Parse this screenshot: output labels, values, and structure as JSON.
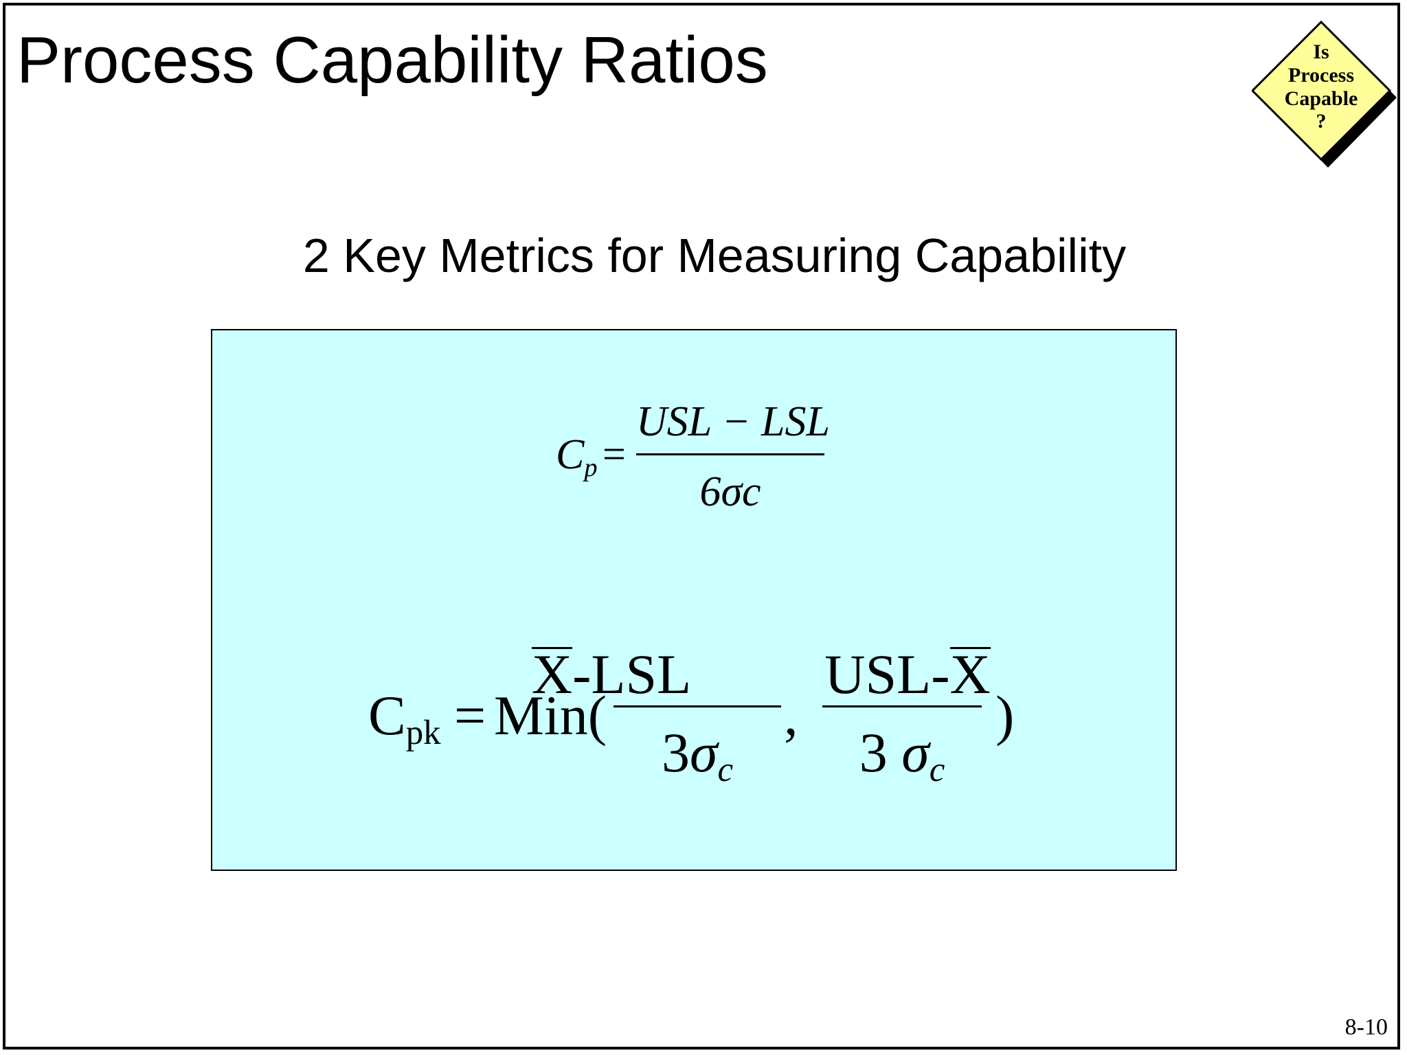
{
  "slide": {
    "title": "Process Capability Ratios",
    "subtitle": "2 Key Metrics for Measuring Capability",
    "page_number": "8-10",
    "badge": {
      "lines": [
        "Is",
        "Process",
        "Capable",
        "?"
      ],
      "fill_color": "#ffff99",
      "shadow_color": "#000000"
    },
    "formula_box": {
      "background_color": "#ccffff",
      "cp": {
        "lhs_symbol": "C",
        "lhs_subscript": "p",
        "equals": "=",
        "numerator": "USL − LSL",
        "denominator": "6σc"
      },
      "cpk": {
        "lhs_symbol": "C",
        "lhs_subscript": "pk",
        "equals": "=",
        "func": "Min(",
        "frac1": {
          "numerator_symbol": "X",
          "numerator_rest": "-LSL",
          "denominator": "3",
          "sigma": "σ",
          "sigma_subscript": "c"
        },
        "separator": ",",
        "frac2": {
          "numerator_lead": "USL-",
          "numerator_symbol": "X",
          "denominator": "3",
          "sigma": "σ",
          "sigma_subscript": "c"
        },
        "close": ")"
      }
    }
  }
}
